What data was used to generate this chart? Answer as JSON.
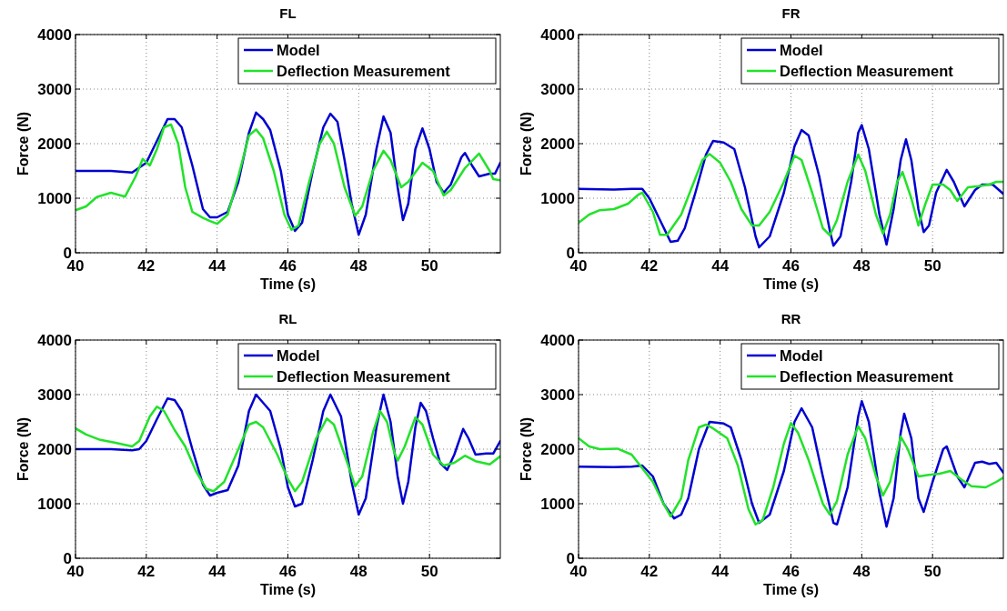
{
  "chart_data": [
    {
      "type": "line",
      "title": "FL",
      "xlabel": "Time (s)",
      "ylabel": "Force (N)",
      "xlim": [
        40,
        52
      ],
      "xticks": [
        40,
        42,
        44,
        46,
        48,
        50
      ],
      "ylim": [
        0,
        4000
      ],
      "yticks": [
        0,
        1000,
        2000,
        3000,
        4000
      ],
      "grid": true,
      "legend": "top right",
      "line_style": "solid",
      "series": [
        {
          "name": "Model",
          "color": "#0000d0",
          "x": [
            40,
            41,
            41.6,
            42,
            42.3,
            42.6,
            42.8,
            43,
            43.3,
            43.6,
            43.8,
            44,
            44.3,
            44.6,
            44.9,
            45.1,
            45.3,
            45.5,
            45.8,
            46,
            46.2,
            46.4,
            46.7,
            47,
            47.2,
            47.4,
            47.6,
            47.8,
            48,
            48.2,
            48.5,
            48.7,
            48.9,
            49.1,
            49.25,
            49.4,
            49.6,
            49.8,
            50,
            50.2,
            50.4,
            50.6,
            50.9,
            51,
            51.2,
            51.4,
            51.7,
            51.85,
            52
          ],
          "values": [
            1500,
            1500,
            1470,
            1650,
            2050,
            2450,
            2450,
            2300,
            1600,
            800,
            650,
            650,
            750,
            1300,
            2200,
            2570,
            2450,
            2250,
            1500,
            700,
            400,
            550,
            1500,
            2300,
            2550,
            2400,
            1700,
            900,
            330,
            700,
            1900,
            2500,
            2200,
            1200,
            600,
            900,
            1900,
            2280,
            1900,
            1300,
            1100,
            1250,
            1750,
            1830,
            1600,
            1400,
            1450,
            1450,
            1650
          ]
        },
        {
          "name": "Deflection Measurement",
          "color": "#22e22a",
          "x": [
            40,
            40.3,
            40.6,
            41,
            41.4,
            41.7,
            41.9,
            42.1,
            42.3,
            42.5,
            42.7,
            42.9,
            43.1,
            43.3,
            43.6,
            43.8,
            44,
            44.3,
            44.6,
            44.9,
            45.1,
            45.3,
            45.6,
            45.9,
            46.1,
            46.3,
            46.6,
            46.9,
            47.1,
            47.3,
            47.6,
            47.9,
            48.1,
            48.4,
            48.7,
            48.9,
            49.2,
            49.4,
            49.8,
            50.1,
            50.4,
            50.6,
            51,
            51.4,
            51.7,
            51.8,
            52
          ],
          "values": [
            780,
            850,
            1020,
            1100,
            1030,
            1400,
            1720,
            1600,
            1900,
            2300,
            2350,
            2000,
            1200,
            750,
            640,
            580,
            530,
            700,
            1400,
            2150,
            2260,
            2100,
            1500,
            700,
            420,
            500,
            1300,
            2000,
            2220,
            2000,
            1200,
            680,
            850,
            1500,
            1870,
            1700,
            1200,
            1300,
            1650,
            1500,
            1050,
            1150,
            1550,
            1820,
            1500,
            1350,
            1330
          ]
        }
      ]
    },
    {
      "type": "line",
      "title": "FR",
      "xlabel": "Time (s)",
      "ylabel": "Force (N)",
      "xlim": [
        40,
        52
      ],
      "xticks": [
        40,
        42,
        44,
        46,
        48,
        50
      ],
      "ylim": [
        0,
        4000
      ],
      "yticks": [
        0,
        1000,
        2000,
        3000,
        4000
      ],
      "grid": true,
      "legend": "top right",
      "line_style": "solid",
      "series": [
        {
          "name": "Model",
          "color": "#0000d0",
          "x": [
            40,
            41,
            41.5,
            41.8,
            42,
            42.3,
            42.6,
            42.8,
            43,
            43.3,
            43.6,
            43.8,
            44.1,
            44.4,
            44.7,
            45,
            45.1,
            45.4,
            45.8,
            46.1,
            46.3,
            46.5,
            46.8,
            47.1,
            47.2,
            47.4,
            47.7,
            47.9,
            48,
            48.2,
            48.5,
            48.7,
            48.9,
            49.1,
            49.25,
            49.4,
            49.6,
            49.75,
            49.9,
            50.1,
            50.4,
            50.6,
            50.9,
            51.2,
            51.4,
            51.7,
            52
          ],
          "values": [
            1170,
            1160,
            1170,
            1170,
            1000,
            600,
            200,
            220,
            450,
            1100,
            1800,
            2050,
            2020,
            1900,
            1200,
            300,
            100,
            300,
            1100,
            1950,
            2250,
            2150,
            1400,
            400,
            130,
            300,
            1300,
            2200,
            2340,
            1900,
            700,
            150,
            800,
            1700,
            2080,
            1700,
            800,
            380,
            500,
            1100,
            1520,
            1300,
            850,
            1150,
            1250,
            1250,
            1080
          ]
        },
        {
          "name": "Deflection Measurement",
          "color": "#22e22a",
          "x": [
            40,
            40.3,
            40.6,
            41,
            41.4,
            41.7,
            41.8,
            42.1,
            42.3,
            42.5,
            42.9,
            43.2,
            43.5,
            43.7,
            44,
            44.3,
            44.6,
            44.9,
            45.1,
            45.4,
            45.8,
            46.1,
            46.3,
            46.6,
            46.9,
            47.1,
            47.3,
            47.6,
            47.9,
            48.1,
            48.4,
            48.6,
            48.8,
            49,
            49.15,
            49.4,
            49.6,
            49.8,
            50,
            50.3,
            50.5,
            50.7,
            51,
            51.3,
            51.6,
            51.8,
            52
          ],
          "values": [
            550,
            700,
            780,
            800,
            900,
            1070,
            1100,
            750,
            330,
            330,
            700,
            1200,
            1700,
            1810,
            1650,
            1300,
            800,
            500,
            500,
            750,
            1300,
            1780,
            1700,
            1100,
            450,
            320,
            600,
            1300,
            1800,
            1500,
            700,
            350,
            700,
            1300,
            1480,
            1000,
            500,
            900,
            1250,
            1250,
            1150,
            950,
            1200,
            1220,
            1250,
            1300,
            1300
          ]
        }
      ]
    },
    {
      "type": "line",
      "title": "RL",
      "xlabel": "Time (s)",
      "ylabel": "Force (N)",
      "xlim": [
        40,
        52
      ],
      "xticks": [
        40,
        42,
        44,
        46,
        48,
        50
      ],
      "ylim": [
        0,
        4000
      ],
      "yticks": [
        0,
        1000,
        2000,
        3000,
        4000
      ],
      "grid": true,
      "legend": "top right",
      "line_style": "solid",
      "series": [
        {
          "name": "Model",
          "color": "#0000d0",
          "x": [
            40,
            41,
            41.6,
            41.8,
            42,
            42.3,
            42.6,
            42.8,
            43,
            43.3,
            43.6,
            43.8,
            44,
            44.3,
            44.6,
            44.9,
            45.1,
            45.3,
            45.5,
            45.8,
            46,
            46.2,
            46.4,
            46.7,
            47,
            47.2,
            47.5,
            47.8,
            48,
            48.2,
            48.5,
            48.7,
            48.9,
            49.1,
            49.25,
            49.4,
            49.6,
            49.75,
            49.9,
            50.1,
            50.3,
            50.5,
            50.7,
            50.95,
            51.1,
            51.3,
            51.6,
            51.8,
            52
          ],
          "values": [
            2000,
            2000,
            1980,
            2000,
            2150,
            2550,
            2930,
            2900,
            2700,
            2000,
            1350,
            1150,
            1200,
            1250,
            1700,
            2700,
            3000,
            2850,
            2700,
            2000,
            1300,
            950,
            1000,
            1800,
            2700,
            3000,
            2600,
            1400,
            800,
            1100,
            2400,
            3000,
            2500,
            1500,
            1000,
            1400,
            2400,
            2850,
            2700,
            2200,
            1750,
            1620,
            1900,
            2370,
            2200,
            1900,
            1920,
            1920,
            2150
          ]
        },
        {
          "name": "Deflection Measurement",
          "color": "#22e22a",
          "x": [
            40,
            40.3,
            40.7,
            41.1,
            41.6,
            41.8,
            42.1,
            42.3,
            42.5,
            42.8,
            43.1,
            43.4,
            43.7,
            43.9,
            44.2,
            44.6,
            44.9,
            45.1,
            45.3,
            45.7,
            46,
            46.2,
            46.4,
            46.8,
            47.1,
            47.3,
            47.6,
            47.9,
            48.1,
            48.4,
            48.6,
            48.8,
            49,
            49.1,
            49.3,
            49.6,
            49.8,
            50.1,
            50.4,
            50.7,
            51,
            51.3,
            51.7,
            52
          ],
          "values": [
            2380,
            2270,
            2170,
            2120,
            2050,
            2150,
            2600,
            2780,
            2700,
            2350,
            2050,
            1600,
            1270,
            1230,
            1400,
            2000,
            2450,
            2500,
            2400,
            1900,
            1450,
            1230,
            1400,
            2200,
            2560,
            2450,
            1900,
            1320,
            1500,
            2300,
            2700,
            2500,
            1950,
            1790,
            2050,
            2580,
            2450,
            1900,
            1700,
            1750,
            1880,
            1780,
            1720,
            1870
          ]
        }
      ]
    },
    {
      "type": "line",
      "title": "RR",
      "xlabel": "Time (s)",
      "ylabel": "Force (N)",
      "xlim": [
        40,
        52
      ],
      "xticks": [
        40,
        42,
        44,
        46,
        48,
        50
      ],
      "ylim": [
        0,
        4000
      ],
      "yticks": [
        0,
        1000,
        2000,
        3000,
        4000
      ],
      "grid": true,
      "legend": "top right",
      "line_style": "solid",
      "series": [
        {
          "name": "Model",
          "color": "#0000d0",
          "x": [
            40,
            41,
            41.5,
            41.8,
            42.1,
            42.4,
            42.7,
            42.9,
            43.1,
            43.4,
            43.7,
            44.1,
            44.3,
            44.6,
            44.9,
            45.1,
            45.4,
            45.8,
            46.1,
            46.3,
            46.6,
            46.9,
            47.2,
            47.3,
            47.6,
            47.9,
            48,
            48.2,
            48.5,
            48.7,
            48.9,
            49.1,
            49.2,
            49.4,
            49.6,
            49.75,
            50,
            50.3,
            50.4,
            50.7,
            50.9,
            51.2,
            51.4,
            51.6,
            51.8,
            52
          ],
          "values": [
            1680,
            1670,
            1680,
            1700,
            1500,
            1000,
            730,
            800,
            1100,
            2000,
            2500,
            2470,
            2400,
            1800,
            1000,
            650,
            800,
            1600,
            2500,
            2750,
            2400,
            1500,
            650,
            620,
            1300,
            2600,
            2880,
            2500,
            1200,
            580,
            1100,
            2300,
            2650,
            2200,
            1100,
            850,
            1400,
            2000,
            2050,
            1500,
            1300,
            1750,
            1770,
            1730,
            1750,
            1570
          ]
        },
        {
          "name": "Deflection Measurement",
          "color": "#22e22a",
          "x": [
            40,
            40.3,
            40.6,
            41.1,
            41.5,
            41.8,
            42.1,
            42.4,
            42.6,
            42.9,
            43.1,
            43.4,
            43.6,
            43.8,
            44.2,
            44.5,
            44.8,
            45,
            45.2,
            45.5,
            45.8,
            46,
            46.2,
            46.5,
            46.9,
            47.1,
            47.3,
            47.6,
            47.9,
            48.1,
            48.4,
            48.6,
            48.8,
            49.1,
            49.3,
            49.6,
            49.9,
            50.2,
            50.5,
            50.8,
            51.1,
            51.5,
            51.8,
            52
          ],
          "values": [
            2200,
            2050,
            2000,
            2010,
            1900,
            1650,
            1400,
            1000,
            770,
            1100,
            1800,
            2400,
            2450,
            2380,
            2200,
            1700,
            900,
            620,
            700,
            1300,
            2100,
            2480,
            2300,
            1800,
            1000,
            800,
            1050,
            1900,
            2420,
            2200,
            1500,
            1150,
            1400,
            2230,
            2000,
            1500,
            1530,
            1550,
            1600,
            1450,
            1320,
            1300,
            1400,
            1480
          ]
        }
      ]
    }
  ]
}
